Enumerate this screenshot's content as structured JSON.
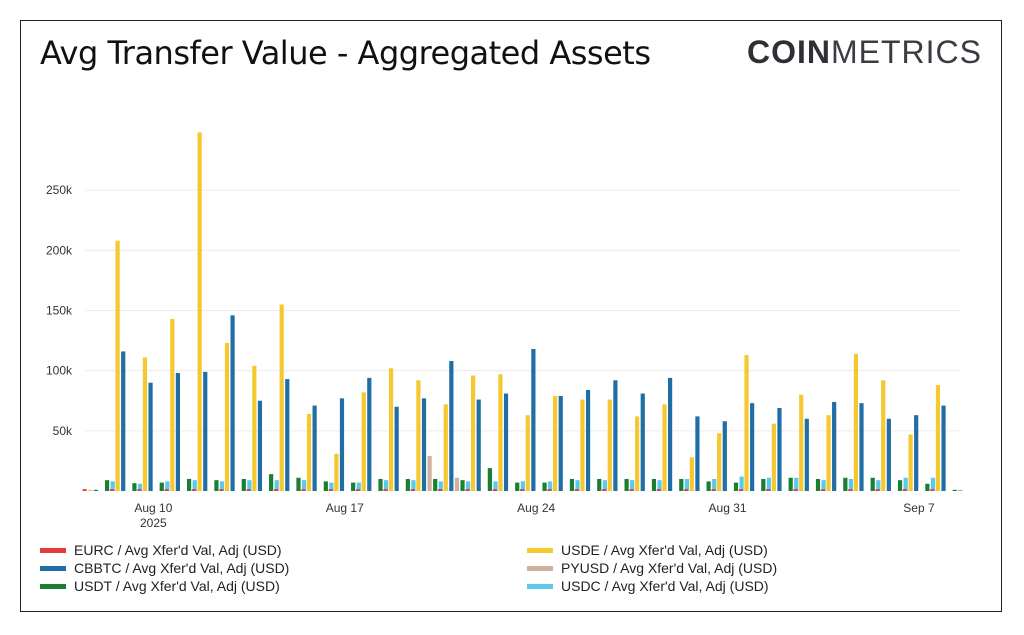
{
  "header": {
    "title": "Avg Transfer Value - Aggregated Assets",
    "logo_bold": "COIN",
    "logo_light": "METRICS"
  },
  "chart_data": {
    "type": "bar",
    "title": "Avg Transfer Value - Aggregated Assets",
    "xlabel": "",
    "ylabel": "",
    "ylim": [
      0,
      300000
    ],
    "yticks": [
      50000,
      100000,
      150000,
      200000,
      250000
    ],
    "ytick_labels": [
      "50k",
      "100k",
      "150k",
      "200k",
      "250k"
    ],
    "grid": true,
    "legend_position": "bottom",
    "categories": [
      "2025-08-08",
      "2025-08-09",
      "2025-08-10",
      "2025-08-11",
      "2025-08-12",
      "2025-08-13",
      "2025-08-14",
      "2025-08-15",
      "2025-08-16",
      "2025-08-17",
      "2025-08-18",
      "2025-08-19",
      "2025-08-20",
      "2025-08-21",
      "2025-08-22",
      "2025-08-23",
      "2025-08-24",
      "2025-08-25",
      "2025-08-26",
      "2025-08-27",
      "2025-08-28",
      "2025-08-29",
      "2025-08-30",
      "2025-08-31",
      "2025-09-01",
      "2025-09-02",
      "2025-09-03",
      "2025-09-04",
      "2025-09-05",
      "2025-09-06",
      "2025-09-07",
      "2025-09-08"
    ],
    "xtick_labels": [
      {
        "category": "2025-08-10",
        "label": "Aug 10",
        "sublabel": "2025"
      },
      {
        "category": "2025-08-17",
        "label": "Aug 17",
        "sublabel": ""
      },
      {
        "category": "2025-08-24",
        "label": "Aug 24",
        "sublabel": ""
      },
      {
        "category": "2025-08-31",
        "label": "Aug 31",
        "sublabel": ""
      },
      {
        "category": "2025-09-07",
        "label": "Sep 7",
        "sublabel": ""
      }
    ],
    "series": [
      {
        "name": "EURC / Avg Xfer'd Val, Adj (USD)",
        "color": "#e23b3b",
        "values": [
          1500,
          1500,
          1500,
          1500,
          1500,
          1500,
          1500,
          1500,
          1500,
          1500,
          1500,
          1500,
          1500,
          1500,
          1500,
          1500,
          1500,
          1500,
          1500,
          1500,
          1500,
          1500,
          1500,
          1500,
          1500,
          1500,
          1500,
          1500,
          1500,
          1500,
          1500,
          1500
        ]
      },
      {
        "name": "USDE / Avg Xfer'd Val, Adj (USD)",
        "color": "#f6c830",
        "values": [
          1000,
          208000,
          111000,
          143000,
          298000,
          123000,
          104000,
          155000,
          64000,
          31000,
          82000,
          102000,
          92000,
          72000,
          96000,
          97000,
          63000,
          79000,
          76000,
          76000,
          62000,
          72000,
          28000,
          48000,
          113000,
          56000,
          80000,
          63000,
          114000,
          92000,
          47000,
          88000
        ]
      },
      {
        "name": "CBBTC / Avg Xfer'd Val, Adj (USD)",
        "color": "#1f6fa6",
        "values": [
          1000,
          116000,
          90000,
          98000,
          99000,
          146000,
          75000,
          93000,
          71000,
          77000,
          94000,
          70000,
          77000,
          108000,
          76000,
          81000,
          118000,
          79000,
          84000,
          92000,
          81000,
          94000,
          62000,
          58000,
          73000,
          69000,
          60000,
          74000,
          73000,
          60000,
          63000,
          71000
        ]
      },
      {
        "name": "PYUSD / Avg Xfer'd Val, Adj (USD)",
        "color": "#d2b09e",
        "values": [
          0,
          0,
          0,
          0,
          0,
          0,
          0,
          0,
          0,
          0,
          0,
          0,
          29000,
          11000,
          0,
          0,
          0,
          0,
          0,
          0,
          0,
          0,
          0,
          0,
          0,
          0,
          0,
          0,
          0,
          0,
          0,
          0
        ]
      },
      {
        "name": "USDT / Avg Xfer'd Val, Adj (USD)",
        "color": "#1a7f2e",
        "values": [
          9000,
          6500,
          7000,
          10000,
          9000,
          10000,
          14000,
          11000,
          8000,
          7000,
          10000,
          10000,
          10000,
          9000,
          19000,
          7000,
          7000,
          10000,
          10000,
          10000,
          10000,
          10000,
          8000,
          7000,
          10000,
          11000,
          10000,
          11000,
          11000,
          9000,
          6000,
          1000
        ]
      },
      {
        "name": "USDC / Avg Xfer'd Val, Adj (USD)",
        "color": "#5bc8ec",
        "values": [
          8000,
          6000,
          8000,
          9000,
          8000,
          9000,
          9000,
          9000,
          7000,
          7000,
          9000,
          9000,
          8000,
          8000,
          8000,
          8000,
          8000,
          9000,
          9000,
          9000,
          9000,
          10000,
          10000,
          12000,
          11000,
          11000,
          9000,
          10000,
          9000,
          11000,
          11000,
          1000
        ]
      }
    ]
  }
}
